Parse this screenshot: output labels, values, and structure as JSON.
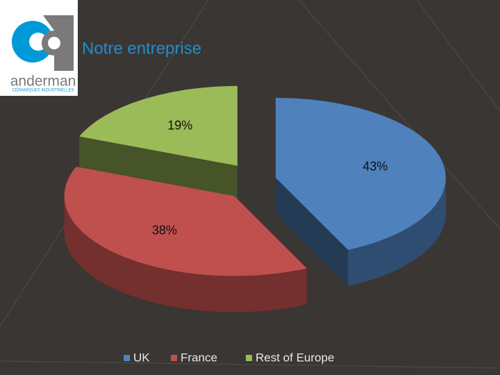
{
  "chart_data": {
    "type": "pie",
    "title": "Notre entreprise",
    "categories": [
      "UK",
      "France",
      "Rest of Europe"
    ],
    "values": [
      43,
      38,
      19
    ],
    "value_labels": [
      "43%",
      "38%",
      "19%"
    ],
    "colors": [
      "#4f81bd",
      "#c0504d",
      "#9bbb59"
    ],
    "legend": "bottom"
  },
  "logo": {
    "name": "anderman",
    "tagline": "CÉRAMIQUES INDUSTRIELLES"
  }
}
